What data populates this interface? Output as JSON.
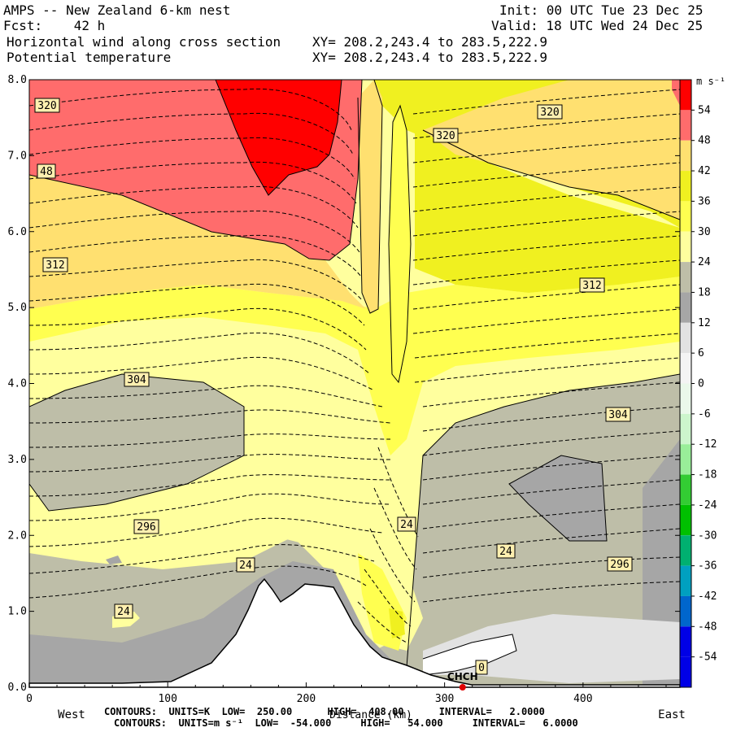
{
  "header": {
    "title": "AMPS -- New Zealand 6-km nest",
    "fcst": "Fcst:    42 h",
    "line3": "Horizontal wind along cross section",
    "line4": "Potential temperature",
    "init": "Init: 00 UTC Tue 23 Dec 25",
    "valid": "Valid: 18 UTC Wed 24 Dec 25",
    "xy1": "XY= 208.2,243.4 to 283.5,222.9",
    "xy2": "XY= 208.2,243.4 to 283.5,222.9"
  },
  "footer": {
    "contours1": "CONTOURS:  UNITS=K  LOW=  250.00      HIGH=  408.00      INTERVAL=   2.0000",
    "contours2": "CONTOURS:  UNITS=m s⁻¹  LOW=  -54.000     HIGH=   54.000     INTERVAL=   6.0000"
  },
  "colors": {
    "neg54": "#0000e6",
    "neg48": "#0066cc",
    "neg42": "#00a0c0",
    "neg36": "#00b070",
    "neg30": "#00c000",
    "neg24": "#33cc33",
    "neg18": "#99ee99",
    "neg12": "#ccf5cc",
    "neg6": "#eaf8ea",
    "zero": "#ffffff",
    "pos6": "#f4f4f4",
    "pos12": "#e2e2e2",
    "pos18": "#a6a6a6",
    "pos24": "#bebea8",
    "pos30": "#ffff9e",
    "pos36": "#ffff50",
    "pos42": "#f0f020",
    "pos48": "#ffe070",
    "pos54": "#ff6c6c",
    "max": "#ff0000",
    "terrain": "#ffffff"
  },
  "chart_data": {
    "type": "contour cross-section",
    "xlabel": "Distance (km)",
    "x_end_labels": [
      "West",
      "East"
    ],
    "x_ticks": [
      0,
      100,
      200,
      300,
      400
    ],
    "xlim": [
      0,
      470
    ],
    "y_ticks": [
      "0.0",
      "1.0",
      "2.0",
      "3.0",
      "4.0",
      "5.0",
      "6.0",
      "7.0",
      "8.0"
    ],
    "ylim": [
      0,
      8
    ],
    "colorbar_units": "m s⁻¹",
    "colorbar_levels": [
      "54",
      "48",
      "42",
      "36",
      "30",
      "24",
      "18",
      "12",
      "6",
      "0",
      "-6",
      "-12",
      "-18",
      "-24",
      "-30",
      "-36",
      "-42",
      "-48",
      "-54"
    ],
    "theta_contour_labels": [
      "320",
      "320",
      "320",
      "312",
      "312",
      "304",
      "304",
      "296",
      "296"
    ],
    "wind_contour_labels": [
      "48",
      "24",
      "24",
      "24",
      "24",
      "0"
    ],
    "station_label": "CHCH",
    "station_x_km": 313,
    "contours": {
      "theta": {
        "units": "K",
        "low": 250,
        "high": 408,
        "interval": 2
      },
      "wind": {
        "units": "m/s",
        "low": -54,
        "high": 54,
        "interval": 6
      }
    }
  }
}
